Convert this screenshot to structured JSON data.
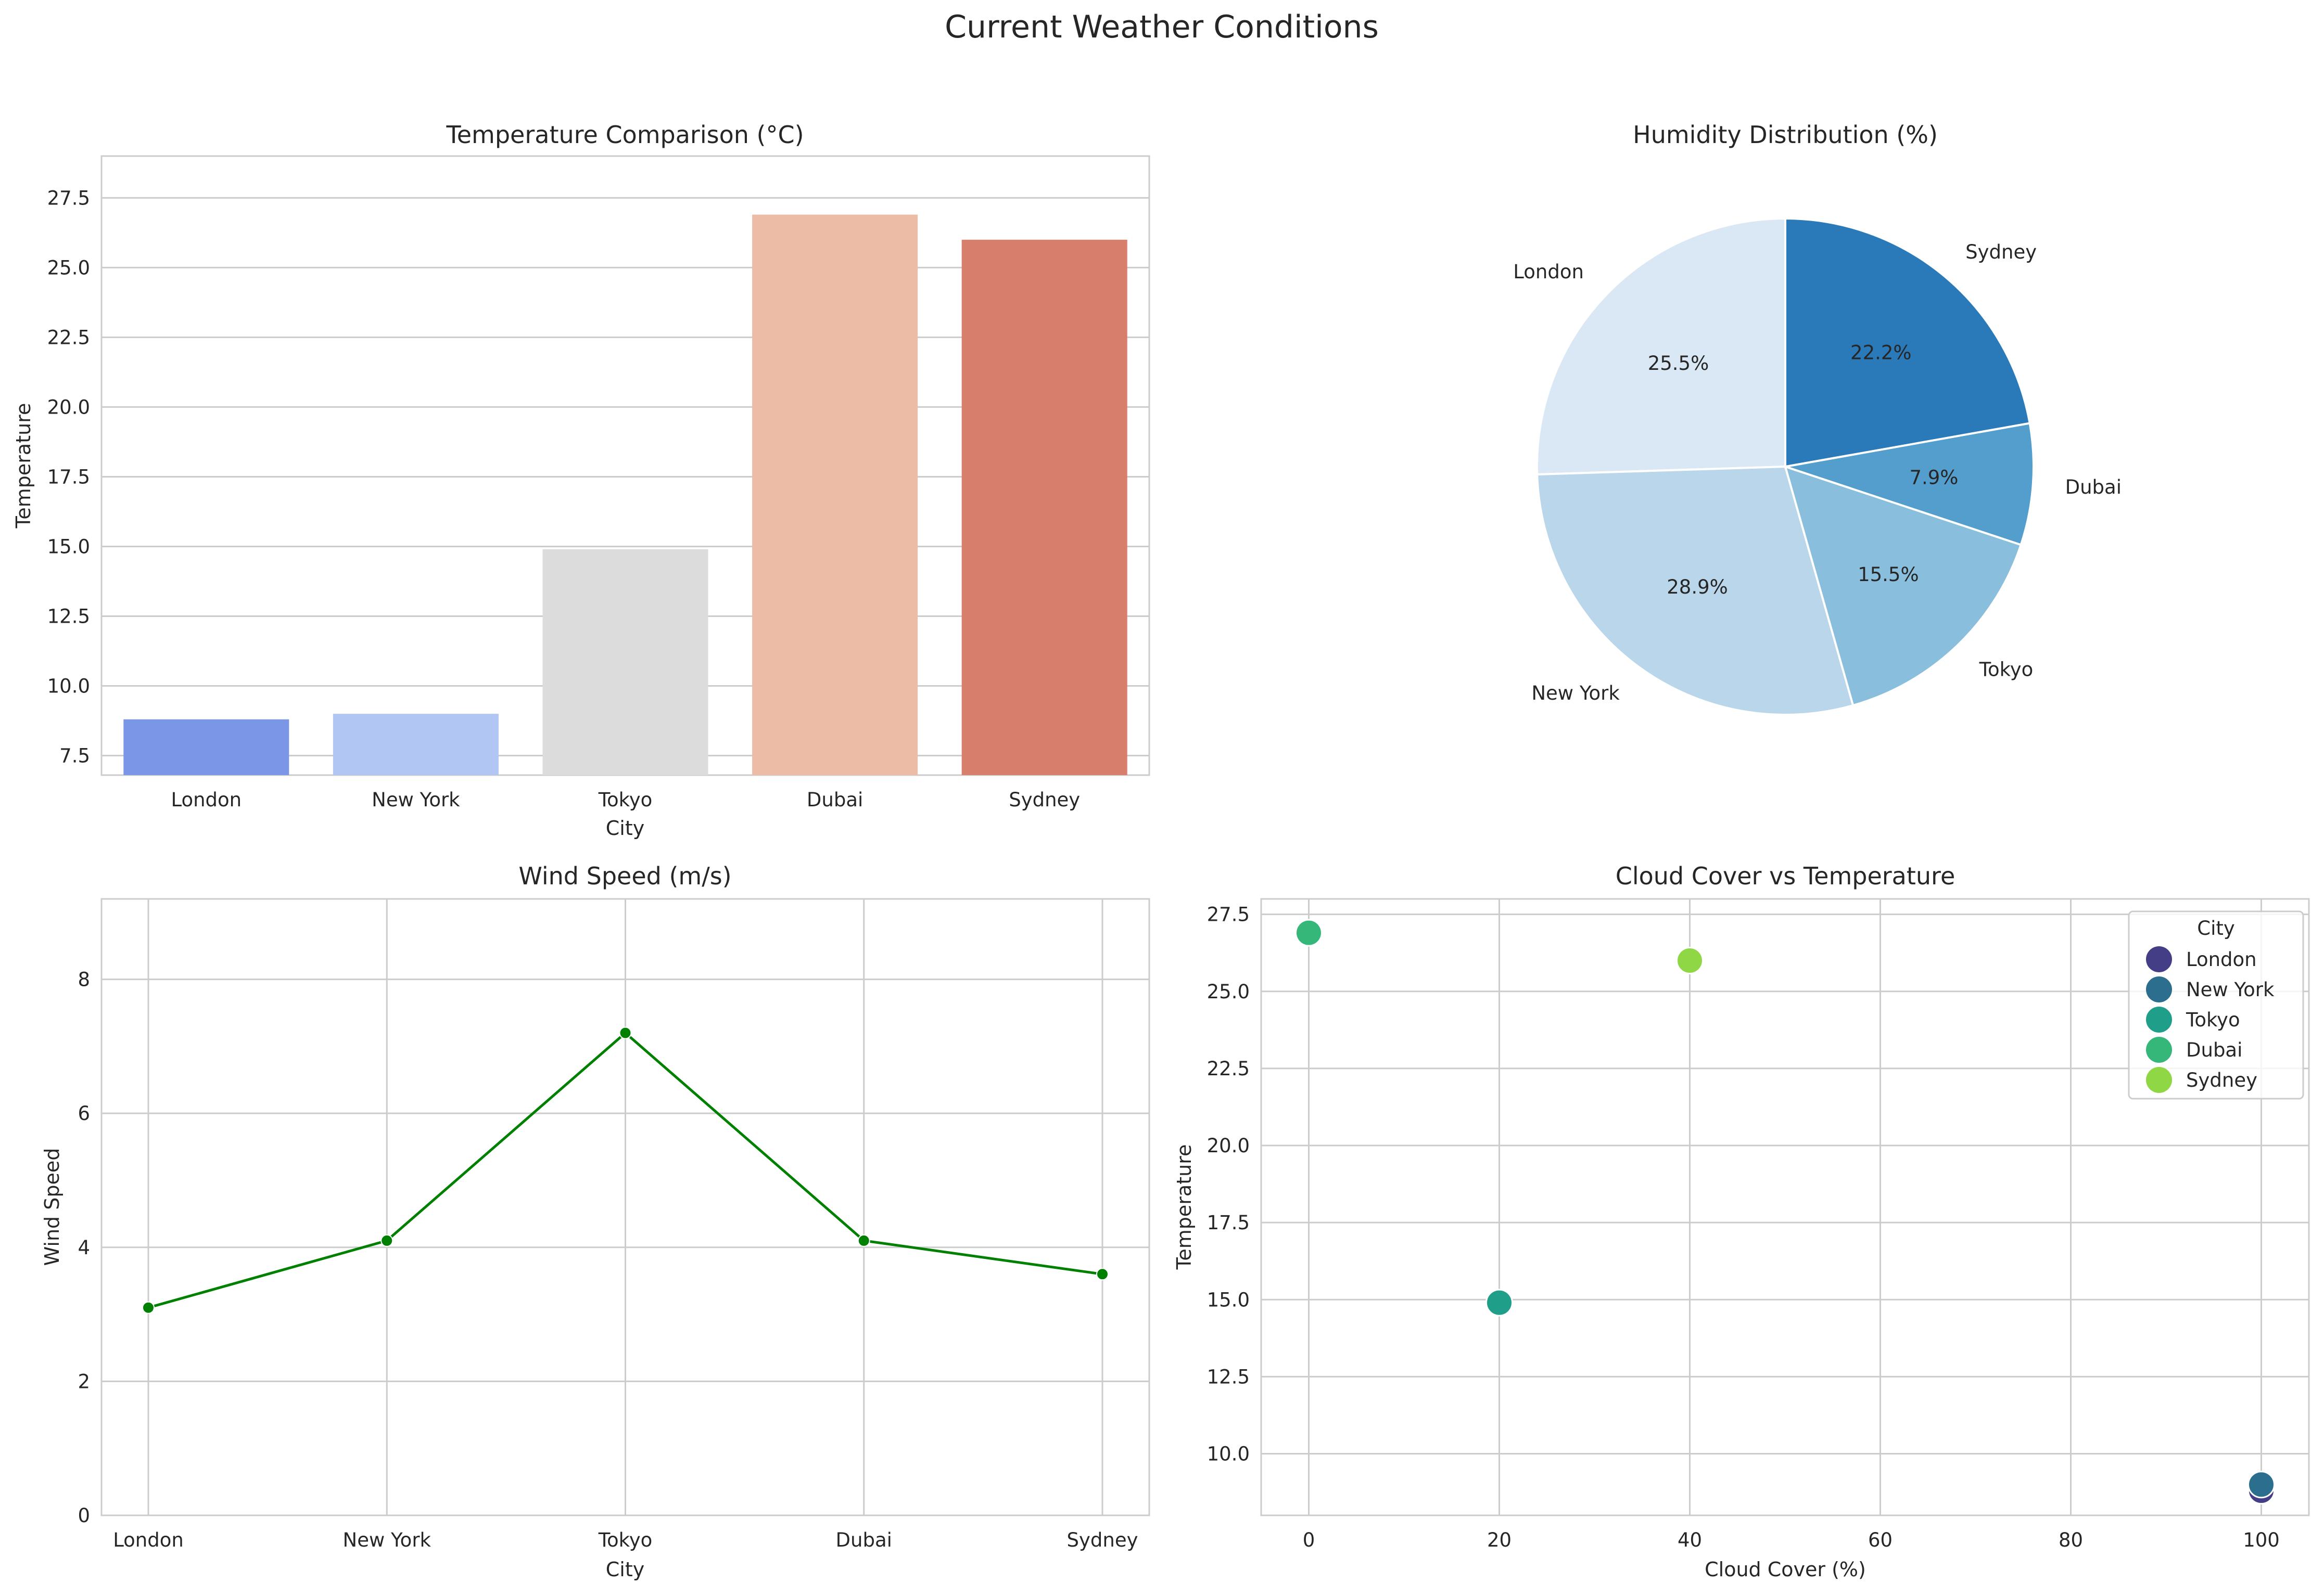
{
  "figure": {
    "title": "Current Weather Conditions"
  },
  "chart_data": [
    {
      "type": "bar",
      "title": "Temperature Comparison (°C)",
      "xlabel": "City",
      "ylabel": "Temperature",
      "categories": [
        "London",
        "New York",
        "Tokyo",
        "Dubai",
        "Sydney"
      ],
      "values": [
        8.8,
        9.0,
        14.9,
        26.9,
        26.0
      ],
      "colors": [
        "#7b96e6",
        "#b2c6f4",
        "#dcdcdc",
        "#edbca6",
        "#d77e6c"
      ],
      "ylim": [
        6.8,
        29.0
      ],
      "yticks": [
        "7.5",
        "10.0",
        "12.5",
        "15.0",
        "17.5",
        "20.0",
        "22.5",
        "25.0",
        "27.5"
      ],
      "grid": "y"
    },
    {
      "type": "pie",
      "title": "Humidity Distribution (%)",
      "labels": [
        "London",
        "New York",
        "Tokyo",
        "Dubai",
        "Sydney"
      ],
      "percent_labels": [
        "25.5%",
        "28.9%",
        "15.5%",
        "7.9%",
        "22.2%"
      ],
      "values": [
        25.5,
        28.9,
        15.5,
        7.9,
        22.2
      ],
      "colors": [
        "#dae8f6",
        "#b9d6ea",
        "#89bedc",
        "#539ecd",
        "#2a7ab9"
      ],
      "start_angle": 90
    },
    {
      "type": "line",
      "title": "Wind Speed (m/s)",
      "xlabel": "City",
      "ylabel": "Wind Speed",
      "categories": [
        "London",
        "New York",
        "Tokyo",
        "Dubai",
        "Sydney"
      ],
      "values": [
        3.1,
        4.1,
        7.2,
        4.1,
        3.6
      ],
      "color": "#008000",
      "ylim": [
        0,
        9.2
      ],
      "yticks": [
        "0",
        "2",
        "4",
        "6",
        "8"
      ],
      "grid": "both"
    },
    {
      "type": "scatter",
      "title": "Cloud Cover vs Temperature",
      "xlabel": "Cloud Cover (%)",
      "ylabel": "Temperature",
      "xlim": [
        -5,
        105
      ],
      "ylim": [
        8.0,
        28.0
      ],
      "xticks": [
        "0",
        "20",
        "40",
        "60",
        "80",
        "100"
      ],
      "yticks": [
        "10.0",
        "12.5",
        "15.0",
        "17.5",
        "20.0",
        "22.5",
        "25.0",
        "27.5"
      ],
      "legend": {
        "title": "City",
        "position": "top-right"
      },
      "series": [
        {
          "name": "London",
          "x": 100,
          "y": 8.8,
          "color": "#433e85"
        },
        {
          "name": "New York",
          "x": 100,
          "y": 9.0,
          "color": "#2c6e8e"
        },
        {
          "name": "Tokyo",
          "x": 20,
          "y": 14.9,
          "color": "#1f9e89"
        },
        {
          "name": "Dubai",
          "x": 0,
          "y": 26.9,
          "color": "#35b779"
        },
        {
          "name": "Sydney",
          "x": 40,
          "y": 26.0,
          "color": "#8fd744"
        }
      ],
      "grid": "both"
    }
  ]
}
